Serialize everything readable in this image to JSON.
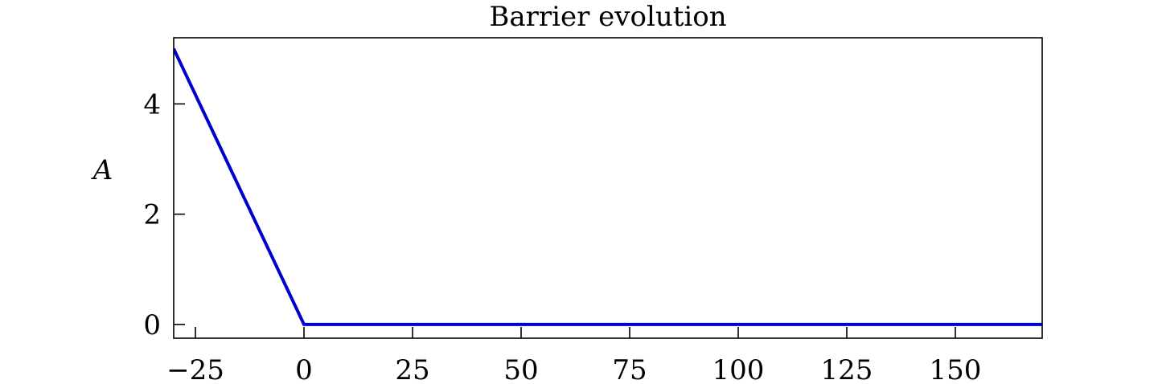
{
  "chart_data": {
    "type": "line",
    "title": "Barrier evolution",
    "xlabel": "",
    "ylabel": "A",
    "xlim": [
      -30,
      170
    ],
    "ylim": [
      -0.25,
      5.2
    ],
    "xticks": [
      -25,
      0,
      25,
      50,
      75,
      100,
      125,
      150
    ],
    "xtick_labels": [
      "−25",
      "0",
      "25",
      "50",
      "75",
      "100",
      "125",
      "150"
    ],
    "yticks": [
      0,
      2,
      4
    ],
    "ytick_labels": [
      "0",
      "2",
      "4"
    ],
    "grid": false,
    "legend": null,
    "series": [
      {
        "color": "#0000cc",
        "x": [
          -30,
          0,
          170
        ],
        "y": [
          5,
          0,
          0
        ]
      }
    ]
  }
}
